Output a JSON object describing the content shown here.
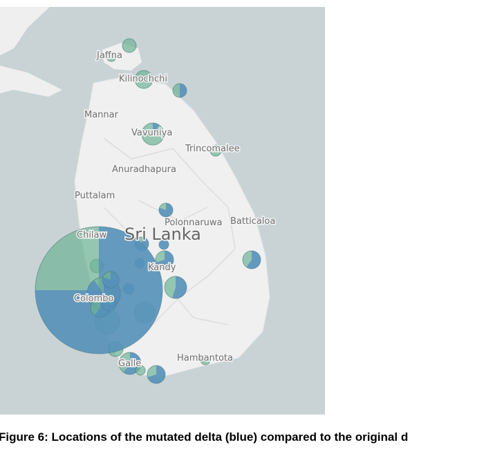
{
  "map": {
    "country": "Sri Lanka",
    "places": [
      "Jaffna",
      "Kilinochchi",
      "Mannar",
      "Vavuniya",
      "Trincomalee",
      "Anuradhapura",
      "Puttalam",
      "Polonnaruwa",
      "Batticaloa",
      "Chilaw",
      "Kandy",
      "Colombo",
      "Hambantota",
      "Galle"
    ]
  },
  "caption": "Figure 6: Locations of the mutated delta (blue) compared to the original d"
}
